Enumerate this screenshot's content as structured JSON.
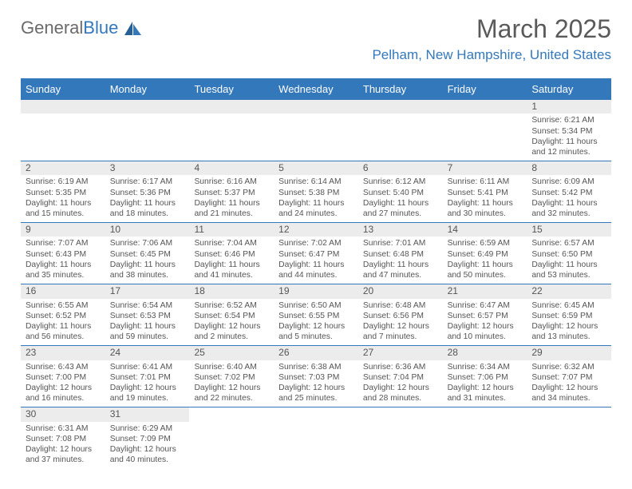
{
  "logo": {
    "text1": "General",
    "text2": "Blue"
  },
  "title": {
    "month": "March 2025",
    "location": "Pelham, New Hampshire, United States"
  },
  "colors": {
    "header_bg": "#3478bc",
    "header_text": "#ffffff",
    "cell_text": "#555555",
    "numbar_bg": "#ececec",
    "rule": "#3478bc"
  },
  "columns": [
    "Sunday",
    "Monday",
    "Tuesday",
    "Wednesday",
    "Thursday",
    "Friday",
    "Saturday"
  ],
  "weeks": [
    [
      null,
      null,
      null,
      null,
      null,
      null,
      {
        "n": "1",
        "sr": "6:21 AM",
        "ss": "5:34 PM",
        "dh": "11",
        "dm": "12"
      }
    ],
    [
      {
        "n": "2",
        "sr": "6:19 AM",
        "ss": "5:35 PM",
        "dh": "11",
        "dm": "15"
      },
      {
        "n": "3",
        "sr": "6:17 AM",
        "ss": "5:36 PM",
        "dh": "11",
        "dm": "18"
      },
      {
        "n": "4",
        "sr": "6:16 AM",
        "ss": "5:37 PM",
        "dh": "11",
        "dm": "21"
      },
      {
        "n": "5",
        "sr": "6:14 AM",
        "ss": "5:38 PM",
        "dh": "11",
        "dm": "24"
      },
      {
        "n": "6",
        "sr": "6:12 AM",
        "ss": "5:40 PM",
        "dh": "11",
        "dm": "27"
      },
      {
        "n": "7",
        "sr": "6:11 AM",
        "ss": "5:41 PM",
        "dh": "11",
        "dm": "30"
      },
      {
        "n": "8",
        "sr": "6:09 AM",
        "ss": "5:42 PM",
        "dh": "11",
        "dm": "32"
      }
    ],
    [
      {
        "n": "9",
        "sr": "7:07 AM",
        "ss": "6:43 PM",
        "dh": "11",
        "dm": "35"
      },
      {
        "n": "10",
        "sr": "7:06 AM",
        "ss": "6:45 PM",
        "dh": "11",
        "dm": "38"
      },
      {
        "n": "11",
        "sr": "7:04 AM",
        "ss": "6:46 PM",
        "dh": "11",
        "dm": "41"
      },
      {
        "n": "12",
        "sr": "7:02 AM",
        "ss": "6:47 PM",
        "dh": "11",
        "dm": "44"
      },
      {
        "n": "13",
        "sr": "7:01 AM",
        "ss": "6:48 PM",
        "dh": "11",
        "dm": "47"
      },
      {
        "n": "14",
        "sr": "6:59 AM",
        "ss": "6:49 PM",
        "dh": "11",
        "dm": "50"
      },
      {
        "n": "15",
        "sr": "6:57 AM",
        "ss": "6:50 PM",
        "dh": "11",
        "dm": "53"
      }
    ],
    [
      {
        "n": "16",
        "sr": "6:55 AM",
        "ss": "6:52 PM",
        "dh": "11",
        "dm": "56"
      },
      {
        "n": "17",
        "sr": "6:54 AM",
        "ss": "6:53 PM",
        "dh": "11",
        "dm": "59"
      },
      {
        "n": "18",
        "sr": "6:52 AM",
        "ss": "6:54 PM",
        "dh": "12",
        "dm": "2"
      },
      {
        "n": "19",
        "sr": "6:50 AM",
        "ss": "6:55 PM",
        "dh": "12",
        "dm": "5"
      },
      {
        "n": "20",
        "sr": "6:48 AM",
        "ss": "6:56 PM",
        "dh": "12",
        "dm": "7"
      },
      {
        "n": "21",
        "sr": "6:47 AM",
        "ss": "6:57 PM",
        "dh": "12",
        "dm": "10"
      },
      {
        "n": "22",
        "sr": "6:45 AM",
        "ss": "6:59 PM",
        "dh": "12",
        "dm": "13"
      }
    ],
    [
      {
        "n": "23",
        "sr": "6:43 AM",
        "ss": "7:00 PM",
        "dh": "12",
        "dm": "16"
      },
      {
        "n": "24",
        "sr": "6:41 AM",
        "ss": "7:01 PM",
        "dh": "12",
        "dm": "19"
      },
      {
        "n": "25",
        "sr": "6:40 AM",
        "ss": "7:02 PM",
        "dh": "12",
        "dm": "22"
      },
      {
        "n": "26",
        "sr": "6:38 AM",
        "ss": "7:03 PM",
        "dh": "12",
        "dm": "25"
      },
      {
        "n": "27",
        "sr": "6:36 AM",
        "ss": "7:04 PM",
        "dh": "12",
        "dm": "28"
      },
      {
        "n": "28",
        "sr": "6:34 AM",
        "ss": "7:06 PM",
        "dh": "12",
        "dm": "31"
      },
      {
        "n": "29",
        "sr": "6:32 AM",
        "ss": "7:07 PM",
        "dh": "12",
        "dm": "34"
      }
    ],
    [
      {
        "n": "30",
        "sr": "6:31 AM",
        "ss": "7:08 PM",
        "dh": "12",
        "dm": "37"
      },
      {
        "n": "31",
        "sr": "6:29 AM",
        "ss": "7:09 PM",
        "dh": "12",
        "dm": "40"
      },
      null,
      null,
      null,
      null,
      null
    ]
  ]
}
